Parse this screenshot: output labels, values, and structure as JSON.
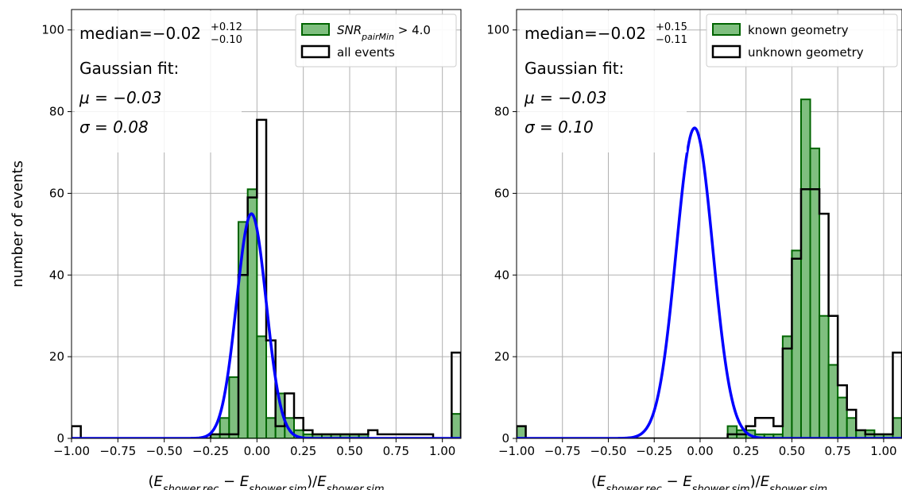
{
  "colors": {
    "fill_green": "#7fbf7f",
    "edge_green": "#006400",
    "gaussian_blue": "#0000ff",
    "outline_black": "#000000",
    "grid": "#b0b0b0"
  },
  "shared_ylabel": "number of events",
  "chart_data": [
    {
      "type": "histogram",
      "xlabel": "(E_shower,rec − E_shower,sim)/E_shower,sim",
      "ylabel": "number of events",
      "xlim": [
        -1.0,
        1.1
      ],
      "ylim": [
        0,
        105
      ],
      "xticks": [
        -1.0,
        -0.75,
        -0.5,
        -0.25,
        0.0,
        0.25,
        0.5,
        0.75,
        1.0
      ],
      "xtick_labels": [
        "−1.00",
        "−0.75",
        "−0.50",
        "−0.25",
        "0.00",
        "0.25",
        "0.50",
        "0.75",
        "1.00"
      ],
      "yticks": [
        0,
        20,
        40,
        60,
        80,
        100
      ],
      "ytick_labels": [
        "0",
        "20",
        "40",
        "60",
        "80",
        "100"
      ],
      "grid": true,
      "legend_position": "top-right",
      "bin_start": -1.0,
      "bin_width": 0.05,
      "series": [
        {
          "name": "SNR_pairMin > 4.0",
          "style": "filled",
          "values": [
            0,
            0,
            0,
            0,
            0,
            0,
            0,
            0,
            0,
            0,
            0,
            0,
            0,
            0,
            0,
            1,
            5,
            15,
            53,
            61,
            25,
            5,
            11,
            5,
            2,
            1,
            1,
            1,
            1,
            1,
            1,
            1,
            0,
            0,
            0,
            0,
            0,
            0,
            0,
            0,
            0,
            6
          ]
        },
        {
          "name": "all events",
          "style": "step",
          "values": [
            3,
            0,
            0,
            0,
            0,
            0,
            0,
            0,
            0,
            0,
            0,
            0,
            0,
            0,
            0,
            1,
            1,
            1,
            40,
            59,
            78,
            24,
            3,
            11,
            5,
            2,
            1,
            1,
            1,
            1,
            1,
            1,
            2,
            1,
            1,
            1,
            1,
            1,
            1,
            0,
            0,
            21
          ]
        }
      ],
      "gaussian_fit": {
        "mu": -0.03,
        "sigma": 0.08,
        "amplitude": 55
      },
      "annotations": {
        "median": "median=−0.02",
        "median_sup": "+0.12",
        "median_sub": "−0.10",
        "fit_title": "Gaussian fit:",
        "mu_text": "μ = −0.03",
        "sigma_text": "σ = 0.08"
      }
    },
    {
      "type": "histogram",
      "xlabel": "(E_shower,rec − E_shower,sim)/E_shower,sim",
      "ylabel": "",
      "xlim": [
        -1.0,
        1.1
      ],
      "ylim": [
        0,
        105
      ],
      "xticks": [
        -1.0,
        -0.75,
        -0.5,
        -0.25,
        0.0,
        0.25,
        0.5,
        0.75,
        1.0
      ],
      "xtick_labels": [
        "−1.00",
        "−0.75",
        "−0.50",
        "−0.25",
        "0.00",
        "0.25",
        "0.50",
        "0.75",
        "1.00"
      ],
      "yticks": [
        0,
        20,
        40,
        60,
        80,
        100
      ],
      "ytick_labels": [
        "0",
        "20",
        "40",
        "60",
        "80",
        "100"
      ],
      "grid": true,
      "legend_position": "top-right",
      "bin_start": -1.0,
      "bin_width": 0.05,
      "series": [
        {
          "name": "known geometry",
          "style": "filled",
          "values": [
            3,
            0,
            0,
            0,
            0,
            0,
            0,
            0,
            0,
            0,
            0,
            0,
            0,
            0,
            0,
            0,
            0,
            0,
            0,
            0,
            0,
            0,
            0,
            3,
            2,
            2,
            1,
            1,
            1,
            25,
            46,
            83,
            71,
            30,
            18,
            10,
            5,
            2,
            2,
            1,
            1,
            5
          ]
        },
        {
          "name": "unknown geometry",
          "style": "step",
          "values": [
            3,
            0,
            0,
            0,
            0,
            0,
            0,
            0,
            0,
            0,
            0,
            0,
            0,
            0,
            0,
            0,
            0,
            0,
            0,
            0,
            0,
            0,
            0,
            1,
            1,
            3,
            5,
            5,
            3,
            22,
            44,
            61,
            61,
            55,
            30,
            13,
            7,
            2,
            1,
            1,
            1,
            21
          ]
        }
      ],
      "gaussian_fit": {
        "mu": -0.03,
        "sigma": 0.1,
        "amplitude": 76
      },
      "annotations": {
        "median": "median=−0.02",
        "median_sup": "+0.15",
        "median_sub": "−0.11",
        "fit_title": "Gaussian fit:",
        "mu_text": "μ = −0.03",
        "sigma_text": "σ = 0.10"
      }
    }
  ]
}
